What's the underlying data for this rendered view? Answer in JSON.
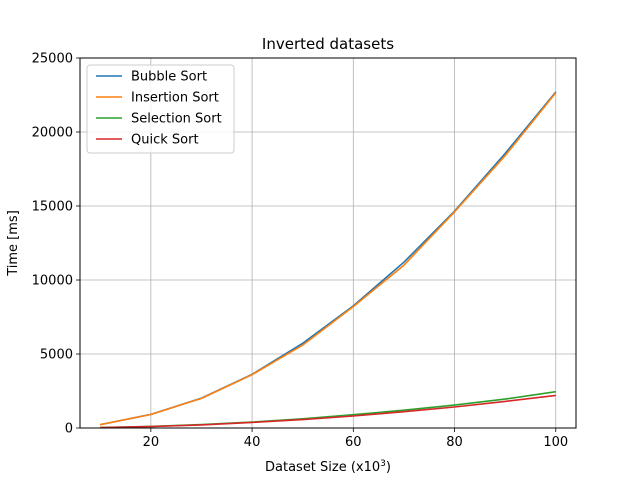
{
  "chart_data": {
    "type": "line",
    "title": "Inverted datasets",
    "xlabel": "Dataset Size (x10",
    "xlabel_sup": "3",
    "xlabel_tail": ")",
    "ylabel": "Time [ms]",
    "xlim": [
      6,
      104
    ],
    "ylim": [
      0,
      25000
    ],
    "xticks": [
      20,
      40,
      60,
      80,
      100
    ],
    "yticks": [
      0,
      5000,
      10000,
      15000,
      20000,
      25000
    ],
    "grid": true,
    "legend_position": "top-left",
    "x": [
      10,
      20,
      30,
      40,
      50,
      60,
      70,
      80,
      90,
      100
    ],
    "series": [
      {
        "name": "Bubble Sort",
        "color": "#1f77b4",
        "values": [
          230,
          920,
          2020,
          3620,
          5720,
          8250,
          11200,
          14650,
          18550,
          22700
        ]
      },
      {
        "name": "Insertion Sort",
        "color": "#ff7f0e",
        "values": [
          225,
          910,
          2000,
          3600,
          5600,
          8200,
          11000,
          14600,
          18400,
          22650
        ]
      },
      {
        "name": "Selection Sort",
        "color": "#2ca02c",
        "values": [
          30,
          110,
          230,
          400,
          620,
          900,
          1200,
          1550,
          1950,
          2450
        ]
      },
      {
        "name": "Quick Sort",
        "color": "#d62728",
        "values": [
          25,
          100,
          210,
          380,
          570,
          810,
          1100,
          1420,
          1800,
          2200
        ]
      }
    ]
  }
}
